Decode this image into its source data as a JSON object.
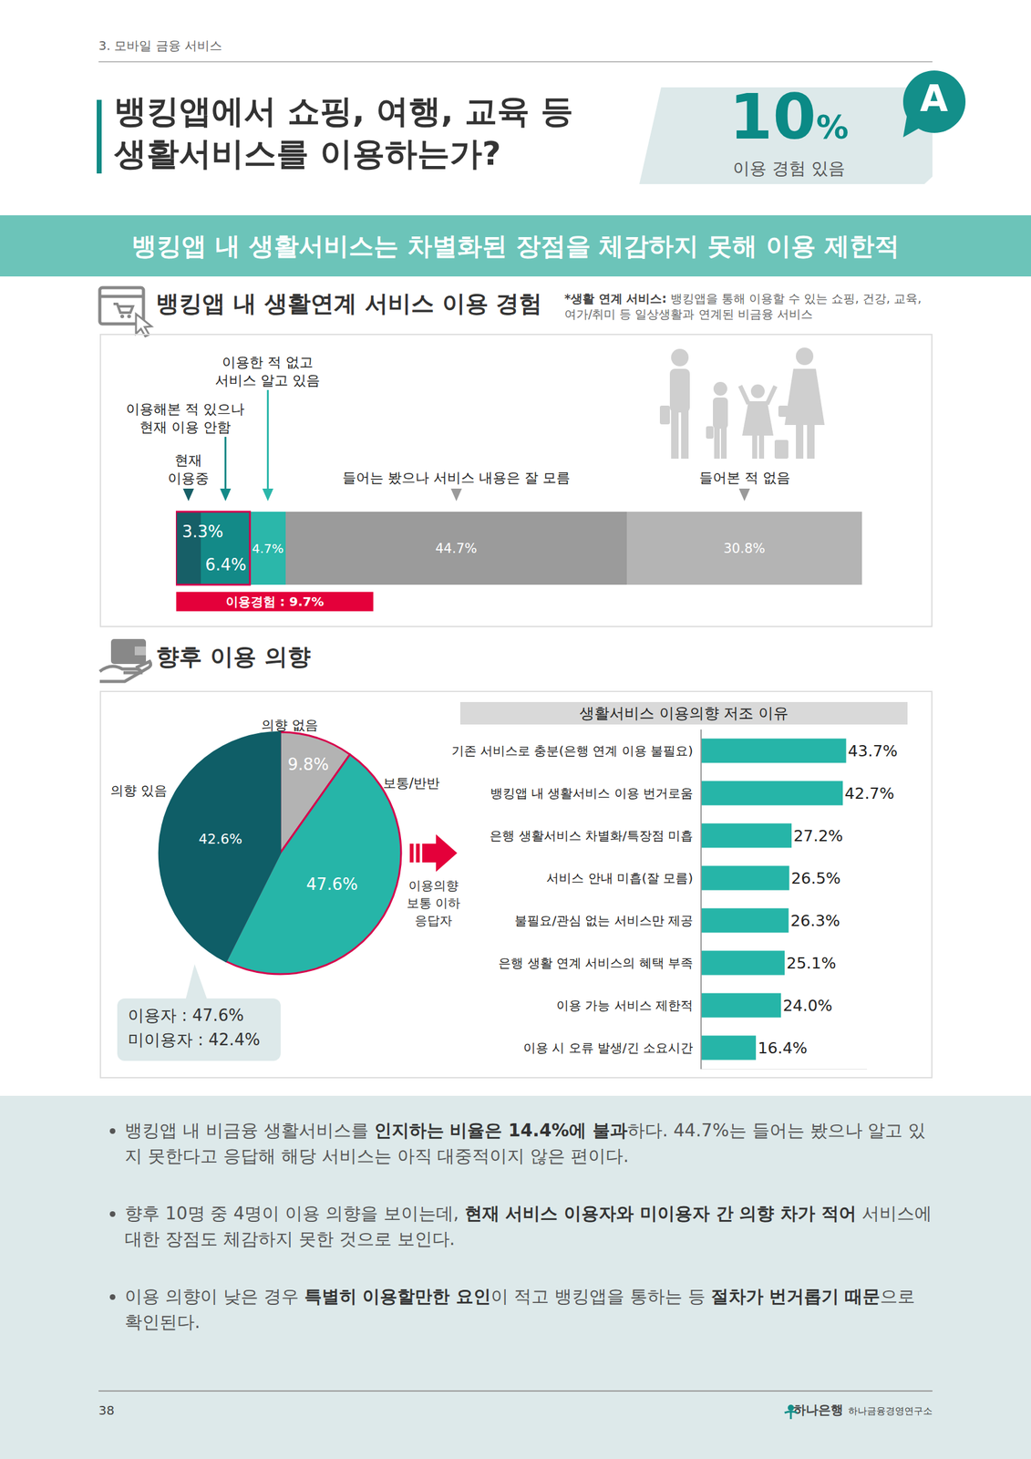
{
  "header": {
    "section": "3. 모바일 금융 서비스",
    "title": "뱅킹앱에서 쇼핑, 여행, 교육 등\n생활서비스를 이용하는가?",
    "answer": {
      "letter": "A",
      "value": 10,
      "unit": "%",
      "label": "이용 경험 있음"
    }
  },
  "banner": "뱅킹앱 내 생활서비스는 차별화된 장점을 체감하지 못해 이용 제한적",
  "sections": [
    {
      "heading": "뱅킹앱 내 생활연계 서비스 이용 경험",
      "note": {
        "term": "*생활 연계 서비스:",
        "text": " 뱅킹앱을 통해 이용할 수 있는 쇼핑, 건강, 교육, 여가/취미 등 일상생활과 연계된 비금융 서비스"
      }
    },
    {
      "heading": "향후 이용 의향"
    }
  ],
  "chart_data": [
    {
      "type": "bar",
      "orientation": "horizontal",
      "stacked": true,
      "data_labels": true,
      "tick_labels": false,
      "categories": [
        null
      ],
      "xlim": [
        0,
        89.9
      ],
      "series": [
        {
          "name": "현재\n이용중",
          "color": "#175f67",
          "values": [
            3.3
          ],
          "value_labels": [
            "3.3%"
          ]
        },
        {
          "name": "이용해본 적 있으나\n현재 이용 안함",
          "color": "#138a88",
          "values": [
            6.4
          ],
          "value_labels": [
            "6.4%"
          ]
        },
        {
          "name": "이용한 적 없고\n서비스 알고 있음",
          "color": "#2bb7aa",
          "values": [
            4.7
          ],
          "value_labels": [
            "4.7%"
          ]
        },
        {
          "name": "들어는 봤으나 서비스 내용은 잘 모름",
          "color": "#9b9b9b",
          "values": [
            44.7
          ],
          "value_labels": [
            "44.7%"
          ]
        },
        {
          "name": "들어본 적 없음",
          "color": "#b4b4b4",
          "values": [
            30.8
          ],
          "value_labels": [
            "30.8%"
          ]
        }
      ],
      "annotations": [
        "이용경험 : 9.7%"
      ]
    },
    {
      "type": "pie",
      "data_labels": true,
      "categories": [
        "의향 없음",
        "보통/반반",
        "의향 있음"
      ],
      "values": [
        9.8,
        47.6,
        42.6
      ],
      "value_labels": [
        "9.8%",
        "47.6%",
        "42.6%"
      ],
      "colors": [
        "#b3b3b3",
        "#26b5a8",
        "#0f5e67"
      ]
    },
    {
      "type": "bar",
      "orientation": "horizontal",
      "title": "생활서비스 이용의향 저조 이유",
      "data_labels": true,
      "tick_labels": "y",
      "categories": [
        "기존 서비스로 충분(은행 연계 이용 불필요)",
        "뱅킹앱 내 생활서비스 이용 번거로움",
        "은행 생활서비스 차별화/특장점 미흡",
        "서비스 안내 미흡(잘 모름)",
        "불필요/관심 없는 서비스만 제공",
        "은행 생활 연계 서비스의 혜택 부족",
        "이용 가능 서비스 제한적",
        "이용 시 오류 발생/긴 소요시간"
      ],
      "values": [
        43.7,
        42.7,
        27.2,
        26.5,
        26.3,
        25.1,
        24.0,
        16.4
      ],
      "value_labels": [
        "43.7%",
        "42.7%",
        "27.2%",
        "26.5%",
        "26.3%",
        "25.1%",
        "24.0%",
        "16.4%"
      ],
      "color": "#26b5a8",
      "xlim": [
        0,
        50
      ]
    }
  ],
  "pie_notes": {
    "arrow_label": "이용의향\n보통 이하\n응답자",
    "callout": [
      "이용자 : 47.6%",
      "미이용자 : 42.4%"
    ]
  },
  "bullets": [
    [
      {
        "text": "뱅킹앱 내 비금융 생활서비스를 "
      },
      {
        "text": "인지하는 비율은 14.4%에 불과",
        "bold": true
      },
      {
        "text": "하다. 44.7%는 들어는 봤으나 알고 있지 못한다고 응답해 해당 서비스는 아직 대중적이지 않은 편이다."
      }
    ],
    [
      {
        "text": "향후 10명 중 4명이 이용 의향을 보이는데, "
      },
      {
        "text": "현재 서비스 이용자와 미이용자 간 의향 차가 적어",
        "bold": true
      },
      {
        "text": " 서비스에 대한 장점도 체감하지 못한 것으로 보인다."
      }
    ],
    [
      {
        "text": "이용 의향이 낮은 경우 "
      },
      {
        "text": "특별히 이용할만한 요인",
        "bold": true
      },
      {
        "text": "이 적고 뱅킹앱을 통하는 등 "
      },
      {
        "text": "절차가 번거롭기 때문",
        "bold": true
      },
      {
        "text": "으로 확인된다."
      }
    ]
  ],
  "footer": {
    "page": "38",
    "brand": "하나은행",
    "institute": "하나금융경영연구소"
  }
}
